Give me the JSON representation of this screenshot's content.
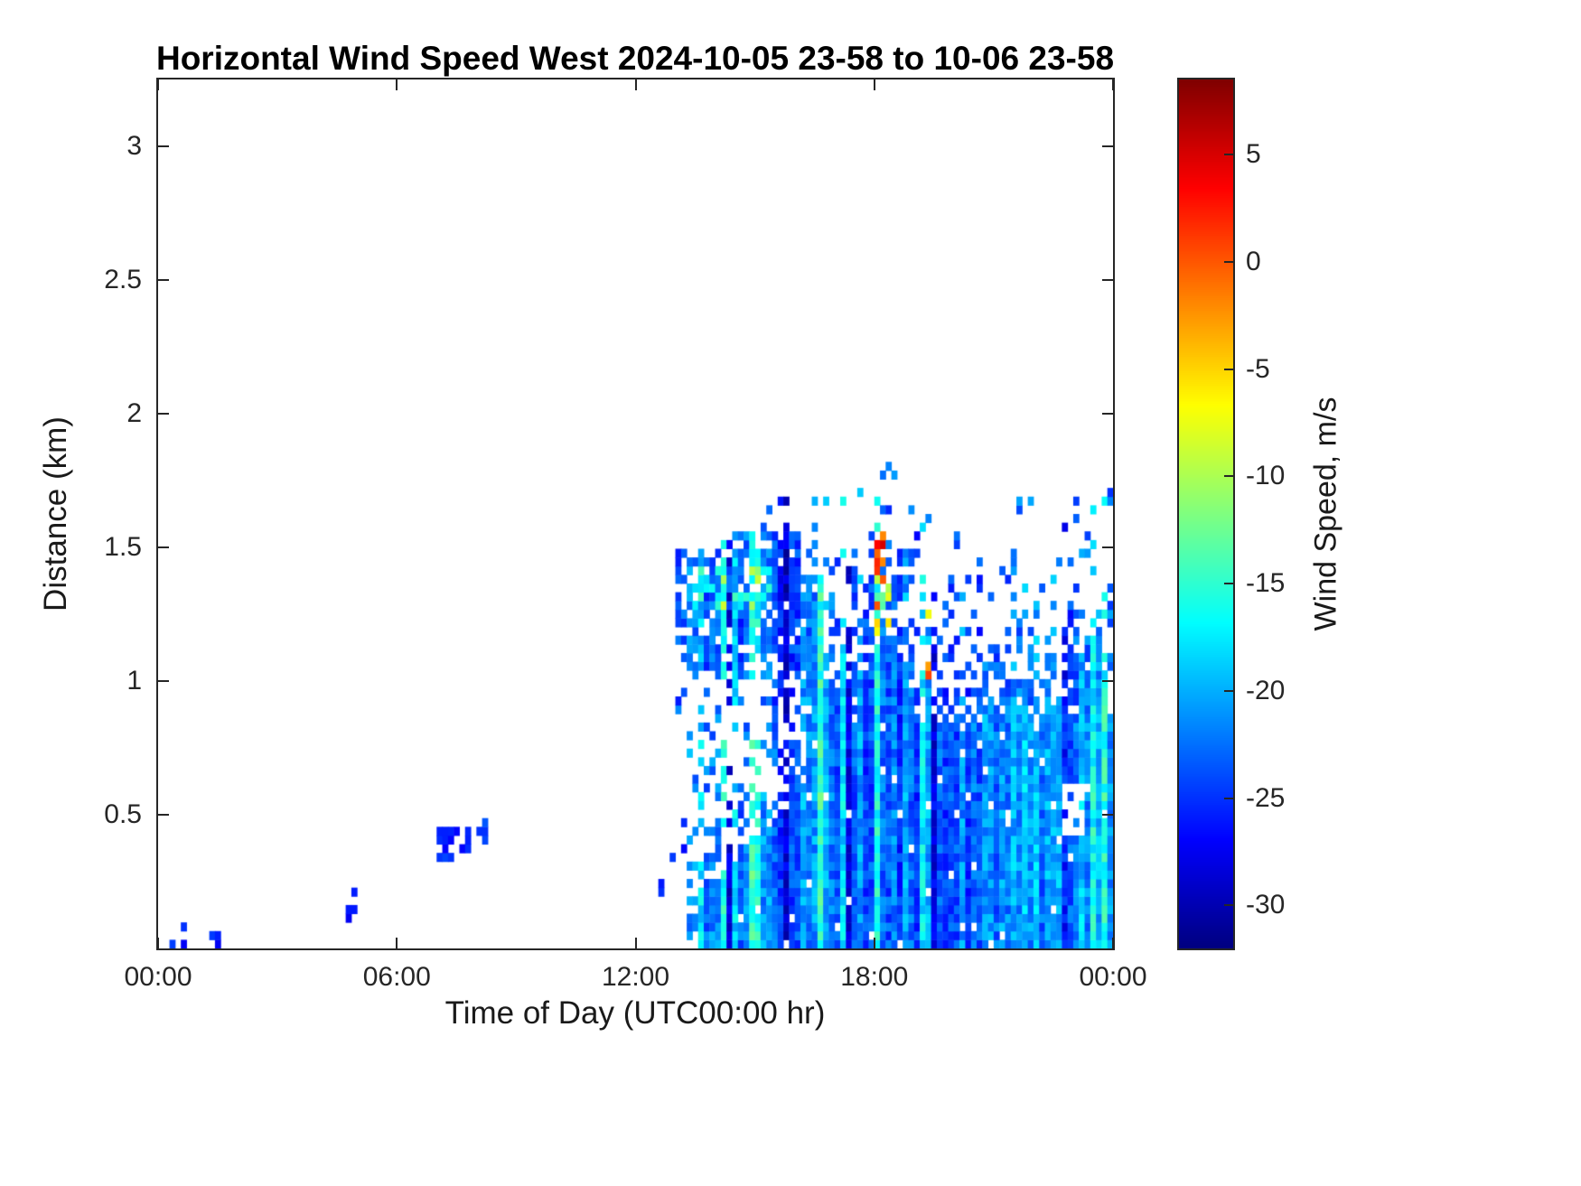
{
  "chart_data": {
    "type": "heatmap",
    "title": "Horizontal Wind Speed West 2024-10-05 23-58 to 10-06 23-58",
    "xlabel": "Time of Day (UTC00:00 hr)",
    "ylabel": "Distance (km)",
    "x_range_hours": [
      0,
      24
    ],
    "y_range_km": [
      0,
      3.25
    ],
    "x_ticks": [
      {
        "label": "00:00",
        "value": 0
      },
      {
        "label": "06:00",
        "value": 6
      },
      {
        "label": "12:00",
        "value": 12
      },
      {
        "label": "18:00",
        "value": 18
      },
      {
        "label": "00:00",
        "value": 24
      }
    ],
    "y_ticks": [
      {
        "label": "0.5",
        "value": 0.5
      },
      {
        "label": "1",
        "value": 1
      },
      {
        "label": "1.5",
        "value": 1.5
      },
      {
        "label": "2",
        "value": 2
      },
      {
        "label": "2.5",
        "value": 2.5
      },
      {
        "label": "3",
        "value": 3
      }
    ],
    "colorbar": {
      "label": "Wind Speed, m/s",
      "ticks": [
        5,
        0,
        -5,
        -10,
        -15,
        -20,
        -25,
        -30
      ],
      "clim": [
        -32,
        8.5
      ],
      "colormap": "jet"
    },
    "no_data_color": "#ffffff",
    "heatmap": {
      "nx": 168,
      "ny": 100,
      "streaks": {
        "t_min": 13.3,
        "cyan_p": 0.1,
        "cyan_shift": 6.5,
        "dark_p": 0.12,
        "dark_shift": -3.5,
        "col_amp": 2.5
      },
      "late_lighten": {
        "t": 20.5,
        "h": 0.9,
        "dv": 1.2
      },
      "regions": [
        {
          "name": "specks-0040",
          "type": "rect",
          "seed": 11,
          "t": [
            0.35,
            0.75
          ],
          "h": [
            0.0,
            0.1
          ],
          "p": 0.28,
          "v": -26,
          "s": 2
        },
        {
          "name": "specks-0125",
          "type": "rect",
          "seed": 12,
          "t": [
            1.25,
            1.55
          ],
          "h": [
            0.0,
            0.08
          ],
          "p": 0.3,
          "v": -26,
          "s": 2
        },
        {
          "name": "specks-0450",
          "type": "rect",
          "seed": 13,
          "t": [
            4.7,
            5.0
          ],
          "h": [
            0.0,
            0.22
          ],
          "p": 0.25,
          "v": -26,
          "s": 2
        },
        {
          "name": "morning-cluster-a",
          "type": "rect",
          "seed": 14,
          "t": [
            6.95,
            7.45
          ],
          "h": [
            0.32,
            0.46
          ],
          "p": 0.55,
          "v": -25,
          "s": 2
        },
        {
          "name": "morning-cluster-b",
          "type": "rect",
          "seed": 15,
          "t": [
            7.5,
            7.8
          ],
          "h": [
            0.36,
            0.44
          ],
          "p": 0.35,
          "v": -25,
          "s": 2
        },
        {
          "name": "morning-cluster-c",
          "type": "rect",
          "seed": 16,
          "t": [
            8.05,
            8.3
          ],
          "h": [
            0.4,
            0.5
          ],
          "p": 0.5,
          "v": -25,
          "s": 2
        },
        {
          "name": "speck-0930",
          "type": "rect",
          "seed": 17,
          "t": [
            9.3,
            9.5
          ],
          "h": [
            0.33,
            0.4
          ],
          "p": 0.5,
          "v": -25,
          "s": 2
        },
        {
          "name": "speck-1115",
          "type": "rect",
          "seed": 18,
          "t": [
            11.15,
            11.35
          ],
          "h": [
            0.32,
            0.4
          ],
          "p": 0.5,
          "v": -25,
          "s": 2
        },
        {
          "name": "speck-1210",
          "type": "rect",
          "seed": 19,
          "t": [
            12.1,
            12.3
          ],
          "h": [
            0.06,
            0.16
          ],
          "p": 0.45,
          "v": -26,
          "s": 2
        },
        {
          "name": "speck-1240",
          "type": "rect",
          "seed": 20,
          "t": [
            12.55,
            12.75
          ],
          "h": [
            0.2,
            0.3
          ],
          "p": 0.35,
          "v": -26,
          "s": 2
        },
        {
          "name": "pre-mass-specks",
          "type": "rect",
          "seed": 21,
          "t": [
            12.9,
            13.45
          ],
          "h": [
            0.3,
            0.5
          ],
          "p": 0.2,
          "v": -25,
          "s": 2
        },
        {
          "name": "boundary-layer-mass",
          "type": "mass",
          "seed": 22,
          "t_start": 13.35,
          "top_pts": [
            [
              13.35,
              0.5
            ],
            [
              14.0,
              0.55
            ],
            [
              15.0,
              0.7
            ],
            [
              15.8,
              0.85
            ],
            [
              16.2,
              0.95
            ],
            [
              16.45,
              1.3
            ],
            [
              17.0,
              1.28
            ],
            [
              17.7,
              1.32
            ],
            [
              18.0,
              1.42
            ],
            [
              18.25,
              1.52
            ],
            [
              18.5,
              1.38
            ],
            [
              19.0,
              1.32
            ],
            [
              19.5,
              1.28
            ],
            [
              20.0,
              1.18
            ],
            [
              20.4,
              1.05
            ],
            [
              20.7,
              1.28
            ],
            [
              21.2,
              1.18
            ],
            [
              21.7,
              1.32
            ],
            [
              22.2,
              1.22
            ],
            [
              22.7,
              1.28
            ],
            [
              23.2,
              1.42
            ],
            [
              23.6,
              1.28
            ],
            [
              24.0,
              1.32
            ]
          ],
          "v": -22.5,
          "s": 2.5,
          "edge_noise": 0.22,
          "top_frac": 0.3,
          "p_top": 0.55,
          "p_core": 0.97,
          "sparse_above": 0.12,
          "sparse_h": 0.4,
          "ramp": {
            "t0": 13.0,
            "dt": 0.8
          },
          "upper_thin": {
            "t": 19,
            "h": 0.85,
            "f": 0.8
          }
        },
        {
          "name": "merge-column",
          "type": "rect",
          "seed": 23,
          "t": [
            16.2,
            16.5
          ],
          "h": [
            0.9,
            1.3
          ],
          "p": 0.75,
          "v": -22,
          "s": 2.5
        },
        {
          "name": "elevated-layer",
          "type": "band",
          "seed": 24,
          "t": [
            12.95,
            16.7
          ],
          "lo_pts": [
            [
              12.95,
              1.15
            ],
            [
              13.4,
              1.08
            ],
            [
              14.2,
              1.02
            ],
            [
              15.0,
              1.05
            ],
            [
              15.8,
              1.08
            ],
            [
              16.3,
              1.0
            ],
            [
              16.7,
              0.95
            ]
          ],
          "hi_pts": [
            [
              12.95,
              1.48
            ],
            [
              13.4,
              1.45
            ],
            [
              14.2,
              1.5
            ],
            [
              14.9,
              1.52
            ],
            [
              15.4,
              1.58
            ],
            [
              15.8,
              1.62
            ],
            [
              16.1,
              1.52
            ],
            [
              16.45,
              1.42
            ],
            [
              16.7,
              1.32
            ]
          ],
          "p": 0.85,
          "gap_t": [
            13.1,
            13.35
          ],
          "gap_p": 0.3,
          "dangle": 0.25,
          "dangle_p": 0.15,
          "v": -23.5,
          "s": 2.5,
          "core": {
            "t": [
              13.4,
              15.4
            ],
            "h": [
              1.28,
              1.42
            ],
            "p": 0.55,
            "v": -17,
            "s": 2
          }
        },
        {
          "name": "warm-plume",
          "type": "rect",
          "seed": 25,
          "t": [
            17.95,
            18.45
          ],
          "h": [
            1.12,
            1.4
          ],
          "p": 0.4,
          "vmin": -14,
          "vmax": 2
        },
        {
          "name": "hot-column",
          "type": "rect",
          "seed": 26,
          "t": [
            18.05,
            18.3
          ],
          "h": [
            1.38,
            1.55
          ],
          "p": 0.8,
          "vmin": -2,
          "vmax": 8.4
        },
        {
          "name": "warm-streak-1920",
          "type": "rect",
          "seed": 27,
          "t": [
            19.25,
            19.45
          ],
          "h": [
            1.02,
            1.28
          ],
          "p": 0.5,
          "vmin": -9,
          "vmax": 4
        },
        {
          "name": "clear-hole-2300",
          "type": "hole",
          "seed": 28,
          "t": [
            22.75,
            23.35
          ],
          "h": [
            0.42,
            0.62
          ],
          "p": 0.88
        }
      ]
    }
  }
}
